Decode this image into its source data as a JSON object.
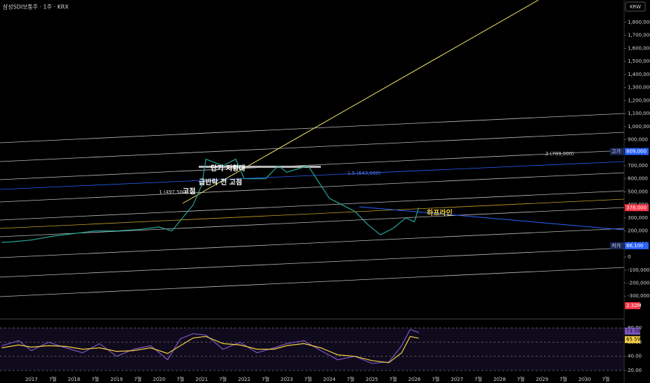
{
  "chart_data": [
    {
      "type": "line",
      "title": "삼성SDI보통주 · 1주 · KRX",
      "currency": "KRW",
      "x": [
        2016.3,
        2016.5,
        2017,
        2017.5,
        2018,
        2018.5,
        2019,
        2019.5,
        2020,
        2020.3,
        2020.5,
        2020.8,
        2021,
        2021.1,
        2021.5,
        2021.8,
        2022,
        2022.5,
        2022.8,
        2023,
        2023.5,
        2023.7,
        2024,
        2024.3,
        2024.6,
        2024.9,
        2025.2,
        2025.5,
        2025.8,
        2026,
        2026.1
      ],
      "series": [
        {
          "color": "#26a69a",
          "values": [
            112000,
            115000,
            130000,
            160000,
            180000,
            200000,
            200000,
            210000,
            230000,
            200000,
            280000,
            400000,
            550000,
            750000,
            700000,
            750000,
            600000,
            600000,
            700000,
            650000,
            700000,
            600000,
            450000,
            400000,
            350000,
            250000,
            170000,
            220000,
            300000,
            270000,
            378000
          ]
        }
      ],
      "xlim": [
        2016.26,
        2030.93
      ],
      "xticks": [
        {
          "value": 2017,
          "label": "2017"
        },
        {
          "value": 2017.5,
          "label": "7월"
        },
        {
          "value": 2018,
          "label": "2018"
        },
        {
          "value": 2018.5,
          "label": "7월"
        },
        {
          "value": 2019,
          "label": "2019"
        },
        {
          "value": 2019.5,
          "label": "7월"
        },
        {
          "value": 2020,
          "label": "2020"
        },
        {
          "value": 2020.5,
          "label": "7월"
        },
        {
          "value": 2021,
          "label": "2021"
        },
        {
          "value": 2021.5,
          "label": "7월"
        },
        {
          "value": 2022,
          "label": "2022"
        },
        {
          "value": 2022.5,
          "label": "7월"
        },
        {
          "value": 2023,
          "label": "2023"
        },
        {
          "value": 2023.5,
          "label": "7월"
        },
        {
          "value": 2024,
          "label": "2024"
        },
        {
          "value": 2024.5,
          "label": "7월"
        },
        {
          "value": 2025,
          "label": "2025"
        },
        {
          "value": 2025.5,
          "label": "7월"
        },
        {
          "value": 2026,
          "label": "2026"
        },
        {
          "value": 2026.5,
          "label": "7월"
        },
        {
          "value": 2027,
          "label": "2027"
        },
        {
          "value": 2027.5,
          "label": "7월"
        },
        {
          "value": 2028,
          "label": "2028"
        },
        {
          "value": 2028.5,
          "label": "7월"
        },
        {
          "value": 2029,
          "label": "2029"
        },
        {
          "value": 2029.5,
          "label": "7월"
        },
        {
          "value": 2030,
          "label": "2030"
        },
        {
          "value": 2030.5,
          "label": "7월"
        }
      ],
      "ylim": [
        -475000,
        1971000
      ],
      "yticks": [
        {
          "value": 1800000,
          "label": "1,800,000"
        },
        {
          "value": 1700000,
          "label": "1,700,000"
        },
        {
          "value": 1600000,
          "label": "1,600,000"
        },
        {
          "value": 1500000,
          "label": "1,500,000"
        },
        {
          "value": 1400000,
          "label": "1,400,000"
        },
        {
          "value": 1300000,
          "label": "1,300,000"
        },
        {
          "value": 1200000,
          "label": "1,200,000"
        },
        {
          "value": 1100000,
          "label": "1,100,000"
        },
        {
          "value": 1000000,
          "label": "1,000,000"
        },
        {
          "value": 900000,
          "label": "900,000"
        },
        {
          "value": 700000,
          "label": "700,000"
        },
        {
          "value": 600000,
          "label": "600,000"
        },
        {
          "value": 500000,
          "label": "500,000"
        },
        {
          "value": 400000,
          "label": "400,000"
        },
        {
          "value": 300000,
          "label": "300,000"
        },
        {
          "value": 200000,
          "label": "200,000"
        },
        {
          "value": 100000,
          "label": "100,000"
        },
        0,
        {
          "value": -100000,
          "label": "-100,000"
        },
        {
          "value": -200000,
          "label": "-200,000"
        },
        {
          "value": -300000,
          "label": "-300,000"
        }
      ],
      "price_labels": [
        {
          "value": 809000,
          "label": "809,000",
          "tag": "고가",
          "color": "#2962ff"
        },
        {
          "value": 378000,
          "label": "378,000",
          "color": "#f23645"
        },
        {
          "value": 86100,
          "label": "86,100",
          "tag": "저가",
          "color": "#2962ff"
        }
      ],
      "volume_label": "2.32M",
      "annotations": [
        "단기 저항대",
        "급반락 전 고점",
        "고점",
        "하프라인",
        "1 (497,500)",
        "1.5 (643,000)",
        "2 (789,000)"
      ]
    },
    {
      "type": "line",
      "x": [
        2016.3,
        2016.7,
        2017,
        2017.4,
        2017.8,
        2018.2,
        2018.6,
        2019,
        2019.4,
        2019.8,
        2020.2,
        2020.5,
        2020.8,
        2021.1,
        2021.5,
        2021.9,
        2022.3,
        2022.7,
        2023,
        2023.4,
        2023.8,
        2024.2,
        2024.6,
        2025,
        2025.4,
        2025.7,
        2025.9,
        2026.1
      ],
      "series": [
        {
          "color": "#7e57c2",
          "values": [
            55,
            62,
            48,
            60,
            52,
            45,
            58,
            40,
            50,
            55,
            35,
            65,
            72,
            70,
            50,
            60,
            45,
            52,
            58,
            62,
            48,
            35,
            40,
            30,
            32,
            55,
            78,
            73.59
          ]
        },
        {
          "color": "#f5d142",
          "values": [
            52,
            56,
            53,
            55,
            54,
            50,
            52,
            47,
            48,
            52,
            44,
            55,
            66,
            68,
            58,
            56,
            50,
            50,
            55,
            58,
            52,
            42,
            40,
            34,
            31,
            45,
            68,
            65.59
          ]
        }
      ],
      "xlim": [
        2016.26,
        2030.93
      ],
      "ylim": [
        12.1,
        88.9
      ],
      "yticks": [
        {
          "value": 80,
          "label": "80.00"
        },
        {
          "value": 60,
          "label": "60.00"
        },
        {
          "value": 40,
          "label": "40.00"
        },
        {
          "value": 20,
          "label": "20.00"
        }
      ]
    }
  ]
}
